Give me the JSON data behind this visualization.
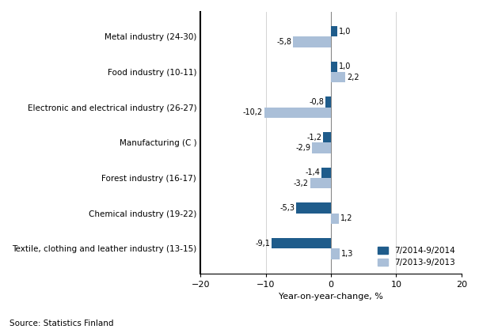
{
  "categories": [
    "Textile, clothing and leather industry (13-15)",
    "Chemical industry (19-22)",
    "Forest industry (16-17)",
    "Manufacturing (C )",
    "Electronic and electrical industry (26-27)",
    "Food industry (10-11)",
    "Metal industry (24-30)"
  ],
  "series_2014": [
    -9.1,
    -5.3,
    -1.4,
    -1.2,
    -0.8,
    1.0,
    1.0
  ],
  "series_2013": [
    1.3,
    1.2,
    -3.2,
    -2.9,
    -10.2,
    2.2,
    -5.8
  ],
  "color_2014": "#1F5C8B",
  "color_2013": "#AABFD8",
  "xlabel": "Year-on-year-change, %",
  "legend_2014": "7/2014-9/2014",
  "legend_2013": "7/2013-9/2013",
  "source": "Source: Statistics Finland",
  "xlim": [
    -20,
    20
  ],
  "xticks": [
    -20,
    -10,
    0,
    10,
    20
  ]
}
